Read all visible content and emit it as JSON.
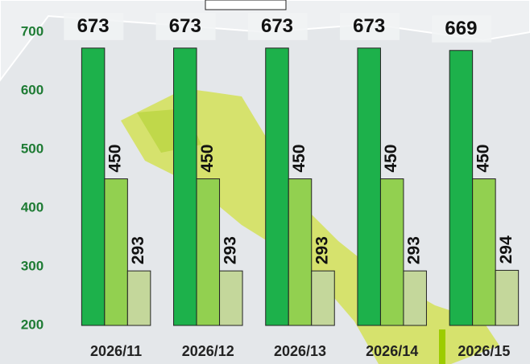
{
  "chart_data": {
    "type": "bar",
    "categories": [
      "2026/11",
      "2026/12",
      "2026/13",
      "2026/14",
      "2026/15"
    ],
    "series": [
      {
        "color": "#1db14b",
        "values": [
          673,
          673,
          673,
          673,
          669
        ]
      },
      {
        "color": "#92d050",
        "values": [
          450,
          450,
          450,
          450,
          450
        ]
      },
      {
        "color": "#c4d79b",
        "values": [
          293,
          293,
          293,
          293,
          294
        ]
      }
    ],
    "ylim": [
      200,
      755
    ],
    "yticks": [
      200,
      300,
      400,
      500,
      600,
      700
    ]
  }
}
